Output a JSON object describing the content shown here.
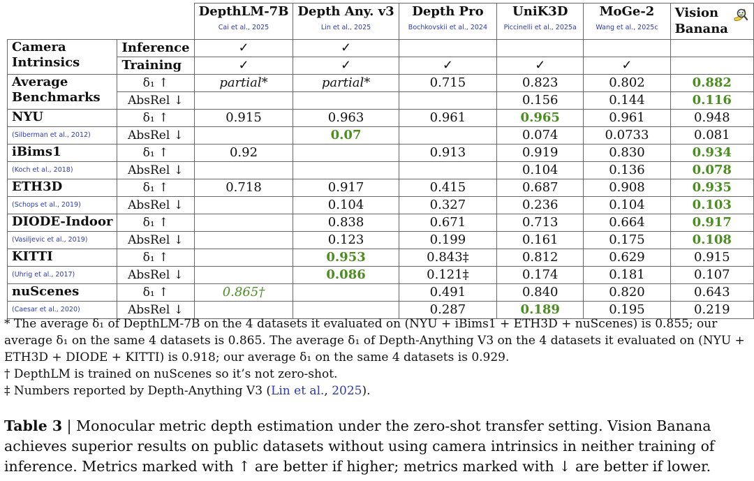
{
  "methods": [
    {
      "name": "DepthLM-7B",
      "cite": "Cai et al., 2025"
    },
    {
      "name": "Depth Any. v3",
      "cite": "Lin et al., 2025"
    },
    {
      "name": "Depth Pro",
      "cite": "Bochkovskii et al., 2024"
    },
    {
      "name": "UniK3D",
      "cite": "Piccinelli et al., 2025a"
    },
    {
      "name": "MoGe-2",
      "cite": "Wang et al., 2025c"
    },
    {
      "name": "Vision\nBanana",
      "cite": ""
    }
  ],
  "camera_intrinsics": {
    "label": "Camera\nIntrinsics",
    "rows": [
      {
        "label": "Inference",
        "cells": [
          "✓",
          "✓",
          "",
          "",
          "",
          ""
        ]
      },
      {
        "label": "Training",
        "cells": [
          "✓",
          "✓",
          "✓",
          "✓",
          "✓",
          ""
        ]
      }
    ]
  },
  "datasets": [
    {
      "name": "Average\nBenchmarks",
      "cite": "",
      "rows": [
        {
          "metric": "δ₁ ↑",
          "cells": [
            {
              "v": "partial*",
              "s": "italic"
            },
            {
              "v": "partial*",
              "s": "italic"
            },
            {
              "v": "0.715"
            },
            {
              "v": "0.823"
            },
            {
              "v": "0.802"
            },
            {
              "v": "0.882",
              "s": "best"
            }
          ]
        },
        {
          "metric": "AbsRel ↓",
          "cells": [
            {
              "v": ""
            },
            {
              "v": ""
            },
            {
              "v": ""
            },
            {
              "v": "0.156"
            },
            {
              "v": "0.144"
            },
            {
              "v": "0.116",
              "s": "best"
            }
          ]
        }
      ]
    },
    {
      "name": "NYU",
      "cite": "(Silberman et al., 2012)",
      "rows": [
        {
          "metric": "δ₁ ↑",
          "cells": [
            {
              "v": "0.915"
            },
            {
              "v": "0.963"
            },
            {
              "v": "0.961"
            },
            {
              "v": "0.965",
              "s": "best"
            },
            {
              "v": "0.961"
            },
            {
              "v": "0.948"
            }
          ]
        },
        {
          "metric": "AbsRel ↓",
          "cells": [
            {
              "v": ""
            },
            {
              "v": "0.07",
              "s": "best"
            },
            {
              "v": ""
            },
            {
              "v": "0.074"
            },
            {
              "v": "0.0733"
            },
            {
              "v": "0.081"
            }
          ]
        }
      ]
    },
    {
      "name": "iBims1",
      "cite": "(Koch et al., 2018)",
      "rows": [
        {
          "metric": "δ₁ ↑",
          "cells": [
            {
              "v": "0.92"
            },
            {
              "v": ""
            },
            {
              "v": "0.913"
            },
            {
              "v": "0.919"
            },
            {
              "v": "0.830"
            },
            {
              "v": "0.934",
              "s": "best"
            }
          ]
        },
        {
          "metric": "AbsRel ↓",
          "cells": [
            {
              "v": ""
            },
            {
              "v": ""
            },
            {
              "v": ""
            },
            {
              "v": "0.104"
            },
            {
              "v": "0.136"
            },
            {
              "v": "0.078",
              "s": "best"
            }
          ]
        }
      ]
    },
    {
      "name": "ETH3D",
      "cite": "(Schops et al., 2019)",
      "rows": [
        {
          "metric": "δ₁ ↑",
          "cells": [
            {
              "v": "0.718"
            },
            {
              "v": "0.917"
            },
            {
              "v": "0.415"
            },
            {
              "v": "0.687"
            },
            {
              "v": "0.908"
            },
            {
              "v": "0.935",
              "s": "best"
            }
          ]
        },
        {
          "metric": "AbsRel ↓",
          "cells": [
            {
              "v": ""
            },
            {
              "v": "0.104"
            },
            {
              "v": "0.327"
            },
            {
              "v": "0.236"
            },
            {
              "v": "0.104"
            },
            {
              "v": "0.103",
              "s": "best"
            }
          ]
        }
      ]
    },
    {
      "name": "DIODE-Indoor",
      "cite": "(Vasiljevic et al., 2019)",
      "rows": [
        {
          "metric": "δ₁ ↑",
          "cells": [
            {
              "v": ""
            },
            {
              "v": "0.838"
            },
            {
              "v": "0.671"
            },
            {
              "v": "0.713"
            },
            {
              "v": "0.664"
            },
            {
              "v": "0.917",
              "s": "best"
            }
          ]
        },
        {
          "metric": "AbsRel ↓",
          "cells": [
            {
              "v": ""
            },
            {
              "v": "0.123"
            },
            {
              "v": "0.199"
            },
            {
              "v": "0.161"
            },
            {
              "v": "0.175"
            },
            {
              "v": "0.108",
              "s": "best"
            }
          ]
        }
      ]
    },
    {
      "name": "KITTI",
      "cite": "(Uhrig et al., 2017)",
      "rows": [
        {
          "metric": "δ₁ ↑",
          "cells": [
            {
              "v": ""
            },
            {
              "v": "0.953",
              "s": "best"
            },
            {
              "v": "0.843‡"
            },
            {
              "v": "0.812"
            },
            {
              "v": "0.629"
            },
            {
              "v": "0.915"
            }
          ]
        },
        {
          "metric": "AbsRel ↓",
          "cells": [
            {
              "v": ""
            },
            {
              "v": "0.086",
              "s": "best"
            },
            {
              "v": "0.121‡"
            },
            {
              "v": "0.174"
            },
            {
              "v": "0.181"
            },
            {
              "v": "0.107"
            }
          ]
        }
      ]
    },
    {
      "name": "nuScenes",
      "cite": "(Caesar et al., 2020)",
      "rows": [
        {
          "metric": "δ₁ ↑",
          "cells": [
            {
              "v": "0.865†",
              "s": "italic-green"
            },
            {
              "v": ""
            },
            {
              "v": "0.491"
            },
            {
              "v": "0.840"
            },
            {
              "v": "0.820"
            },
            {
              "v": "0.643"
            }
          ]
        },
        {
          "metric": "AbsRel ↓",
          "cells": [
            {
              "v": ""
            },
            {
              "v": ""
            },
            {
              "v": "0.287"
            },
            {
              "v": "0.189",
              "s": "best"
            },
            {
              "v": "0.195"
            },
            {
              "v": "0.219"
            }
          ]
        }
      ]
    }
  ],
  "notes": {
    "star": "* The average δ₁ of DepthLM-7B on the 4 datasets it evaluated on (NYU + iBims1 + ETH3D + nuScenes) is 0.855; our average δ₁ on the same 4 datasets is 0.865. The average δ₁ of Depth-Anything V3 on the 4 datasets it evaluated on (NYU + ETH3D + DIODE + KITTI) is 0.918; our average δ₁ on the same 4 datasets is 0.929.",
    "dagger": "† DepthLM is trained on nuScenes so it’s not zero-shot.",
    "ddagger_prefix": "‡ Numbers reported by Depth-Anything V3 (",
    "ddagger_link": "Lin et al.",
    "ddagger_mid": ", ",
    "ddagger_year": "2025",
    "ddagger_suffix": ")."
  },
  "caption": {
    "label": "Table 3",
    "separator": " | ",
    "text": "Monocular metric depth estimation under the zero-shot transfer setting. Vision Banana achieves superior results on public datasets without using camera intrinsics in neither training of inference. Metrics marked with ↑ are better if higher; metrics marked with ↓ are better if lower."
  },
  "colors": {
    "best": "#4a8f1e",
    "citation": "#2b3ab3",
    "border": "#666666"
  },
  "icons": {
    "vision_banana": "banana-with-magnifier-icon"
  }
}
